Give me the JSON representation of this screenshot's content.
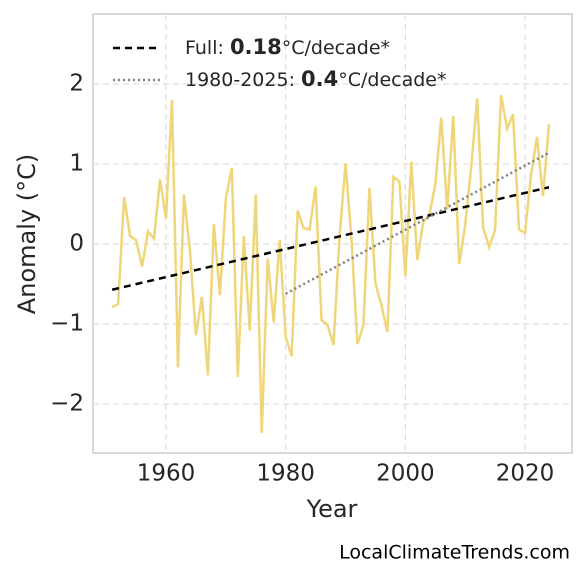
{
  "chart_data": {
    "type": "line",
    "xlabel": "Year",
    "ylabel": "Anomaly (°C)",
    "footer": "LocalClimateTrends.com",
    "xlim": [
      1947.8,
      2027.85
    ],
    "ylim": [
      -2.61,
      2.875
    ],
    "xticks": [
      1960,
      1980,
      2000,
      2020
    ],
    "yticks": [
      {
        "value": -2,
        "label": "−2"
      },
      {
        "value": -1,
        "label": "−1"
      },
      0,
      1,
      2
    ],
    "grid": true,
    "legend": "upper left",
    "x": [
      1951,
      1952,
      1953,
      1954,
      1955,
      1956,
      1957,
      1958,
      1959,
      1960,
      1961,
      1962,
      1963,
      1964,
      1965,
      1966,
      1967,
      1968,
      1969,
      1970,
      1971,
      1972,
      1973,
      1974,
      1975,
      1976,
      1977,
      1978,
      1979,
      1980,
      1981,
      1982,
      1983,
      1984,
      1985,
      1986,
      1987,
      1988,
      1989,
      1990,
      1991,
      1992,
      1993,
      1994,
      1995,
      1996,
      1997,
      1998,
      1999,
      2000,
      2001,
      2002,
      2003,
      2004,
      2005,
      2006,
      2007,
      2008,
      2009,
      2010,
      2011,
      2012,
      2013,
      2014,
      2015,
      2016,
      2017,
      2018,
      2019,
      2020,
      2021,
      2022,
      2023,
      2024
    ],
    "values": [
      -0.79,
      -0.75,
      0.59,
      0.1,
      0.05,
      -0.28,
      0.16,
      0.07,
      0.81,
      0.32,
      1.8,
      -1.54,
      0.62,
      -0.08,
      -1.14,
      -0.66,
      -1.64,
      0.25,
      -0.64,
      0.57,
      0.95,
      -1.66,
      0.1,
      -1.08,
      0.62,
      -2.36,
      -0.18,
      -0.98,
      0.05,
      -1.16,
      -1.4,
      0.42,
      0.2,
      0.18,
      0.72,
      -0.95,
      -1.01,
      -1.26,
      0.09,
      1.01,
      0.05,
      -1.25,
      -1.01,
      0.7,
      -0.49,
      -0.76,
      -1.1,
      0.84,
      0.78,
      -0.4,
      1.03,
      -0.2,
      0.28,
      0.36,
      0.74,
      1.58,
      0.43,
      1.6,
      -0.25,
      0.24,
      0.96,
      1.82,
      0.21,
      -0.04,
      0.18,
      1.86,
      1.44,
      1.62,
      0.18,
      0.14,
      0.86,
      1.34,
      0.6,
      1.5
    ],
    "color": "#f0d67a",
    "trends": [
      {
        "name": [
          "Full: ",
          "0.18",
          "°C/decade*"
        ],
        "color": "#000000",
        "dash": "7,5",
        "x": [
          1951,
          2024
        ],
        "values": [
          -0.57,
          0.71
        ]
      },
      {
        "name": [
          "1980-2025: ",
          "0.4",
          "°C/decade*"
        ],
        "color": "#808080",
        "dash": "2,3",
        "x": [
          1980,
          2024
        ],
        "values": [
          -0.62,
          1.14
        ]
      }
    ]
  }
}
